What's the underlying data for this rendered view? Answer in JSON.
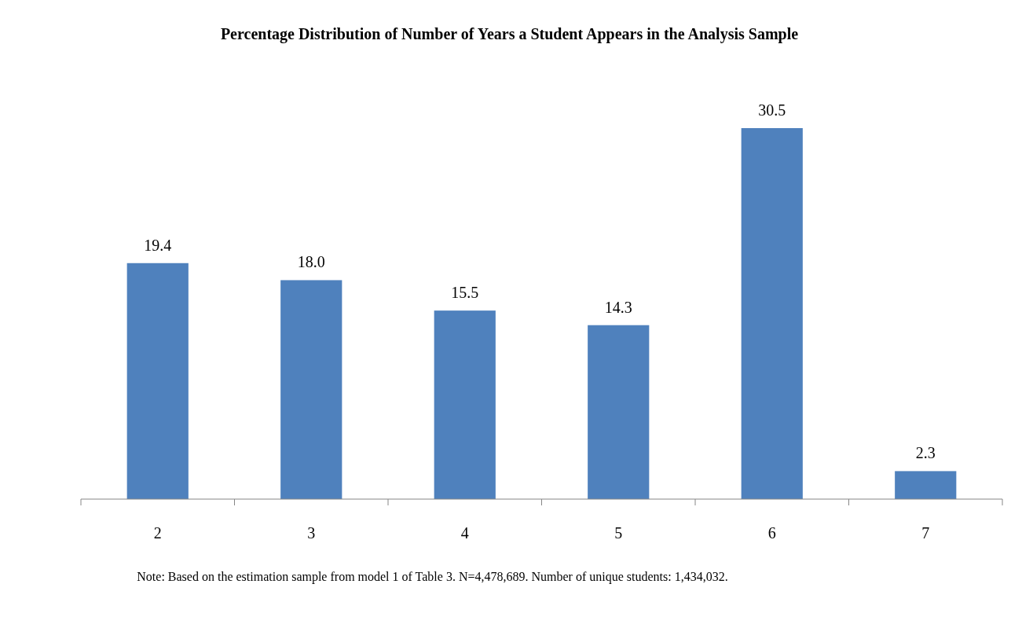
{
  "chart_data": {
    "type": "bar",
    "title": "Percentage Distribution of Number of Years a Student Appears in the Analysis Sample",
    "categories": [
      "2",
      "3",
      "4",
      "5",
      "6",
      "7"
    ],
    "values": [
      19.4,
      18.0,
      15.5,
      14.3,
      30.5,
      2.3
    ],
    "value_labels": [
      "19.4",
      "18.0",
      "15.5",
      "14.3",
      "30.5",
      "2.3"
    ],
    "color": "#4f81bd",
    "annotations": [
      "Note: Based on the estimation sample from model 1 of Table 3. N=4,478,689. Number of unique students: 1,434,032."
    ]
  }
}
